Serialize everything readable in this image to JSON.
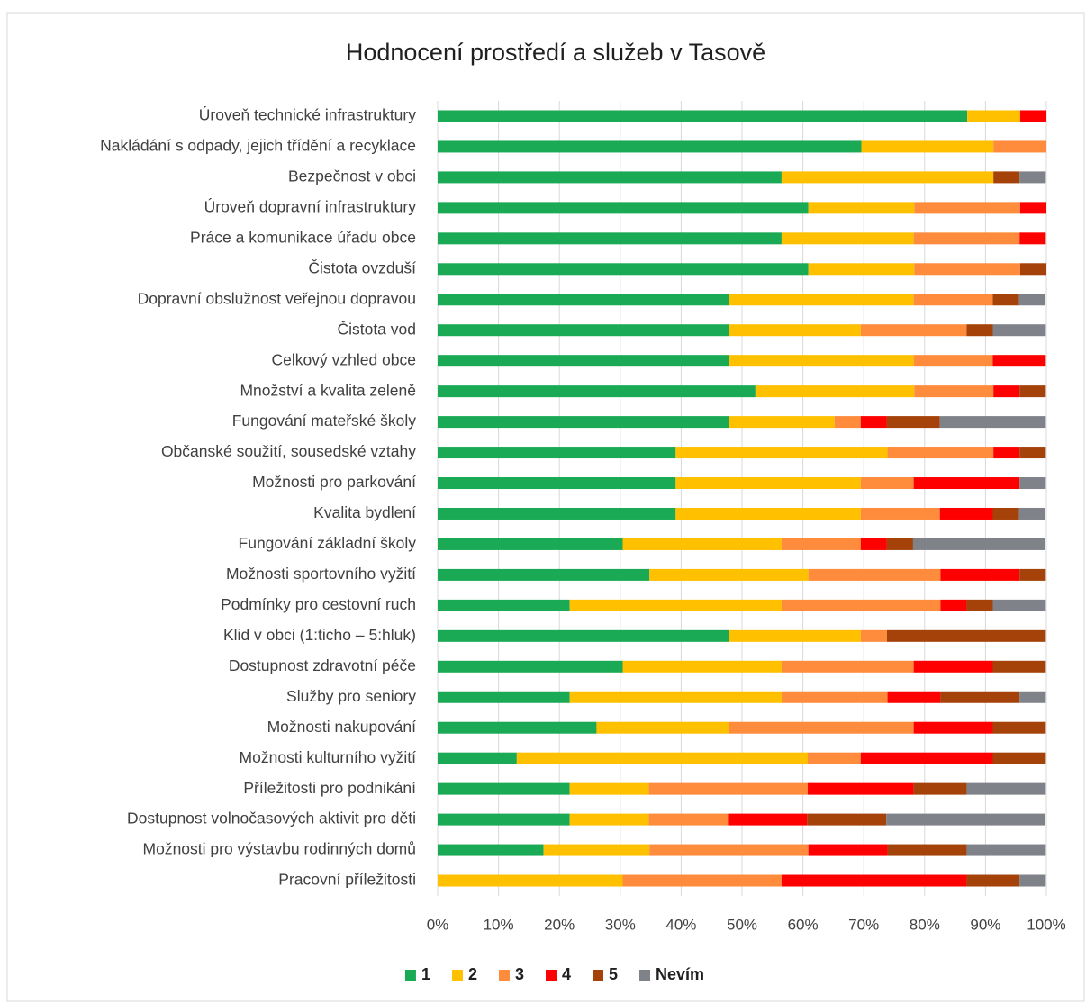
{
  "chart_data": {
    "type": "stacked_bar_horizontal",
    "title": "Hodnocení prostředí a služeb v Tasově",
    "categories": [
      "Úroveň technické infrastruktury",
      "Nakládání s odpady, jejich třídění a recyklace",
      "Bezpečnost v obci",
      "Úroveň dopravní infrastruktury",
      "Práce a komunikace úřadu obce",
      "Čistota ovzduší",
      "Dopravní obslužnost veřejnou dopravou",
      "Čistota vod",
      "Celkový vzhled obce",
      "Množství a kvalita zeleně",
      "Fungování mateřské školy",
      "Občanské soužití, sousedské vztahy",
      "Možnosti pro parkování",
      "Kvalita bydlení",
      "Fungování základní školy",
      "Možnosti sportovního vyžití",
      "Podmínky pro cestovní ruch",
      "Klid v obci (1:ticho – 5:hluk)",
      "Dostupnost zdravotní péče",
      "Služby pro seniory",
      "Možnosti nakupování",
      "Možnosti kulturního vyžití",
      "Příležitosti pro podnikání",
      "Dostupnost volnočasových aktivit pro děti",
      "Možnosti pro výstavbu rodinných domů",
      "Pracovní příležitosti"
    ],
    "series": [
      {
        "name": "1",
        "color": "#1aaa55",
        "values": [
          87.0,
          69.6,
          56.5,
          60.9,
          56.5,
          60.9,
          47.8,
          47.8,
          47.8,
          52.2,
          47.8,
          39.1,
          39.1,
          39.1,
          30.4,
          34.8,
          21.7,
          47.8,
          30.4,
          21.7,
          26.1,
          13.0,
          21.7,
          21.7,
          17.4,
          0
        ]
      },
      {
        "name": "2",
        "color": "#ffc000",
        "values": [
          8.7,
          21.7,
          34.8,
          17.4,
          21.7,
          17.4,
          30.4,
          21.7,
          30.4,
          26.1,
          17.4,
          34.8,
          30.4,
          30.4,
          26.1,
          26.1,
          34.8,
          21.7,
          26.1,
          34.8,
          21.7,
          47.8,
          13.0,
          13.0,
          17.4,
          30.4
        ]
      },
      {
        "name": "3",
        "color": "#ff8c3c",
        "values": [
          0,
          8.7,
          0,
          17.4,
          17.4,
          17.4,
          13.0,
          17.4,
          13.0,
          13.0,
          4.3,
          17.4,
          8.7,
          13.0,
          13.0,
          21.7,
          26.1,
          4.3,
          21.7,
          17.4,
          30.4,
          8.7,
          26.1,
          13.0,
          26.1,
          26.1
        ]
      },
      {
        "name": "4",
        "color": "#ff0000",
        "values": [
          4.3,
          0,
          0,
          4.3,
          4.3,
          0,
          0,
          0,
          8.7,
          4.3,
          4.3,
          4.3,
          17.4,
          8.7,
          4.3,
          13.0,
          4.3,
          0,
          13.0,
          8.7,
          13.0,
          21.7,
          17.4,
          13.0,
          13.0,
          30.4
        ]
      },
      {
        "name": "5",
        "color": "#a5420a",
        "values": [
          0,
          0,
          4.3,
          0,
          0,
          4.3,
          4.3,
          4.3,
          0,
          4.3,
          8.7,
          4.3,
          0,
          4.3,
          4.3,
          4.3,
          4.3,
          26.1,
          8.7,
          13.0,
          8.7,
          8.7,
          8.7,
          13.0,
          13.0,
          8.7
        ]
      },
      {
        "name": "Nevím",
        "color": "#808289",
        "values": [
          0,
          0,
          4.3,
          0,
          0,
          0,
          4.3,
          8.7,
          0,
          0,
          17.4,
          0,
          4.3,
          4.3,
          21.7,
          0,
          8.7,
          0,
          0,
          4.3,
          0,
          0,
          13.0,
          26.1,
          13.0,
          4.3
        ]
      }
    ],
    "xlim": [
      0,
      100
    ],
    "xticks": [
      {
        "value": 0,
        "label": "0%"
      },
      {
        "value": 10,
        "label": "10%"
      },
      {
        "value": 20,
        "label": "20%"
      },
      {
        "value": 30,
        "label": "30%"
      },
      {
        "value": 40,
        "label": "40%"
      },
      {
        "value": 50,
        "label": "50%"
      },
      {
        "value": 60,
        "label": "60%"
      },
      {
        "value": 70,
        "label": "70%"
      },
      {
        "value": 80,
        "label": "80%"
      },
      {
        "value": 90,
        "label": "90%"
      },
      {
        "value": 100,
        "label": "100%"
      }
    ],
    "grid": true,
    "legend": "bottom"
  }
}
